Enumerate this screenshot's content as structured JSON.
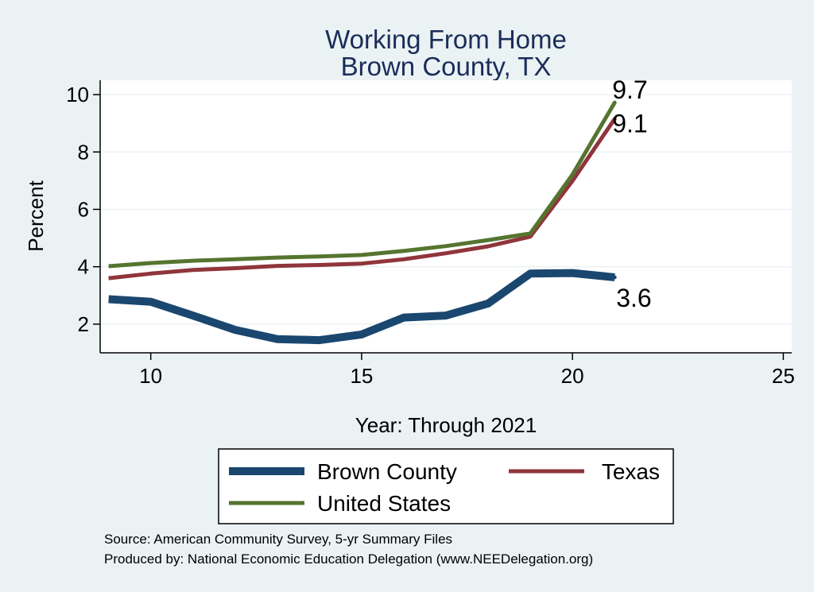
{
  "chart_data": {
    "type": "line",
    "title": [
      "Working From Home",
      "Brown County, TX"
    ],
    "xlabel": "Year: Through 2021",
    "ylabel": "Percent",
    "xlim": [
      8.8,
      25.2
    ],
    "ylim": [
      1.0,
      10.5
    ],
    "xticks": [
      10,
      15,
      20,
      25
    ],
    "yticks": [
      2,
      4,
      6,
      8,
      10
    ],
    "grid": true,
    "series": [
      {
        "name": "Brown County",
        "color": "#1a476f",
        "width": 10,
        "x": [
          9,
          10,
          11,
          12,
          13,
          14,
          15,
          16,
          17,
          18,
          19,
          20,
          21
        ],
        "y": [
          2.87,
          2.78,
          2.3,
          1.8,
          1.48,
          1.44,
          1.64,
          2.23,
          2.3,
          2.72,
          3.76,
          3.78,
          3.63
        ],
        "end_label": "3.6"
      },
      {
        "name": "Texas",
        "color": "#90353b",
        "width": 5,
        "x": [
          9,
          10,
          11,
          12,
          13,
          14,
          15,
          16,
          17,
          18,
          19,
          20,
          21
        ],
        "y": [
          3.6,
          3.76,
          3.89,
          3.95,
          4.03,
          4.06,
          4.11,
          4.26,
          4.47,
          4.71,
          5.05,
          6.99,
          9.15
        ],
        "end_label": "9.1"
      },
      {
        "name": "United States",
        "color": "#55752f",
        "width": 5,
        "x": [
          9,
          10,
          11,
          12,
          13,
          14,
          15,
          16,
          17,
          18,
          19,
          20,
          21
        ],
        "y": [
          4.02,
          4.13,
          4.21,
          4.26,
          4.32,
          4.36,
          4.41,
          4.55,
          4.72,
          4.93,
          5.16,
          7.21,
          9.72
        ],
        "end_label": "9.7"
      }
    ],
    "legend": {
      "placement": "bottom",
      "columns": 2
    },
    "notes": [
      "Source: American Community Survey, 5-yr Summary Files",
      "Produced by: National Economic Education Delegation (www.NEEDelegation.org)"
    ]
  }
}
